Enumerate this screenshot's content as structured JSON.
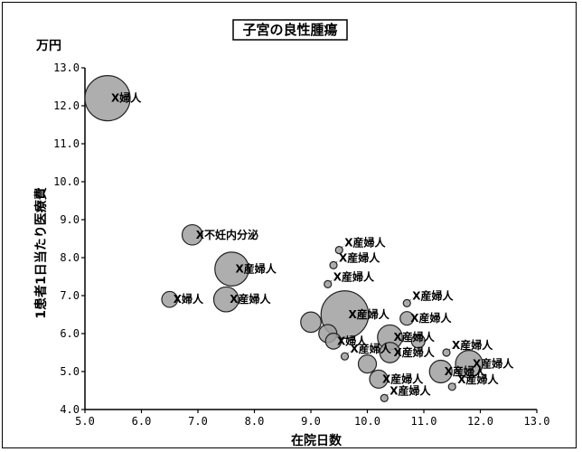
{
  "chart_data": {
    "type": "scatter",
    "title": "子宮の良性腫瘍",
    "ylabel": "1患者1日当たり医療費",
    "yunit": "万円",
    "xlabel": "在院日数",
    "xlim": [
      5.0,
      13.0
    ],
    "ylim": [
      4.0,
      13.0
    ],
    "x_ticks": [
      "5.0",
      "6.0",
      "7.0",
      "8.0",
      "9.0",
      "10.0",
      "11.0",
      "12.0",
      "13.0"
    ],
    "y_ticks": [
      "4.0",
      "5.0",
      "6.0",
      "7.0",
      "8.0",
      "9.0",
      "10.0",
      "11.0",
      "12.0",
      "13.0"
    ],
    "bubble_color": "#a0a0a0",
    "points": [
      {
        "x": 5.4,
        "y": 12.2,
        "r": 1.0,
        "label": "X婦人"
      },
      {
        "x": 6.9,
        "y": 8.6,
        "r": 0.45,
        "label": "X不妊内分泌"
      },
      {
        "x": 7.6,
        "y": 7.7,
        "r": 0.75,
        "label": "X産婦人"
      },
      {
        "x": 6.5,
        "y": 6.9,
        "r": 0.35,
        "label": "X婦人"
      },
      {
        "x": 7.5,
        "y": 6.9,
        "r": 0.55,
        "label": "X産婦人"
      },
      {
        "x": 9.5,
        "y": 8.2,
        "r": 0.12,
        "label": "X産婦人"
      },
      {
        "x": 9.4,
        "y": 7.8,
        "r": 0.12,
        "label": "X産婦人"
      },
      {
        "x": 9.3,
        "y": 7.3,
        "r": 0.12,
        "label": "X産婦人"
      },
      {
        "x": 9.6,
        "y": 6.5,
        "r": 1.05,
        "label": "X産婦人"
      },
      {
        "x": 10.7,
        "y": 6.4,
        "r": 0.3,
        "label": "X産婦人"
      },
      {
        "x": 10.7,
        "y": 6.8,
        "r": 0.1,
        "label": "X産婦人"
      },
      {
        "x": 10.4,
        "y": 5.9,
        "r": 0.55,
        "label": "X産婦人"
      },
      {
        "x": 11.4,
        "y": 5.5,
        "r": 0.12,
        "label": "X産婦人"
      },
      {
        "x": 11.8,
        "y": 5.2,
        "r": 0.6,
        "label": "X産婦人"
      },
      {
        "x": 11.3,
        "y": 5.0,
        "r": 0.5,
        "label": "X産婦人"
      },
      {
        "x": 11.5,
        "y": 4.6,
        "r": 0.1,
        "label": "X産婦人"
      },
      {
        "x": 10.2,
        "y": 4.8,
        "r": 0.4,
        "label": "X産婦人"
      },
      {
        "x": 10.3,
        "y": 4.3,
        "r": 0.1,
        "label": "X産婦人"
      },
      {
        "x": 10.4,
        "y": 5.5,
        "r": 0.45,
        "label": "X産婦人"
      },
      {
        "x": 9.4,
        "y": 5.8,
        "r": 0.35,
        "label": "X婦人"
      },
      {
        "x": 9.6,
        "y": 5.4,
        "r": 0.1,
        "label": "X産婦人"
      },
      {
        "x": 9.0,
        "y": 6.3,
        "r": 0.45,
        "label": ""
      },
      {
        "x": 9.3,
        "y": 6.0,
        "r": 0.4,
        "label": ""
      },
      {
        "x": 10.0,
        "y": 5.2,
        "r": 0.4,
        "label": ""
      },
      {
        "x": 10.9,
        "y": 5.8,
        "r": 0.3,
        "label": ""
      }
    ]
  }
}
